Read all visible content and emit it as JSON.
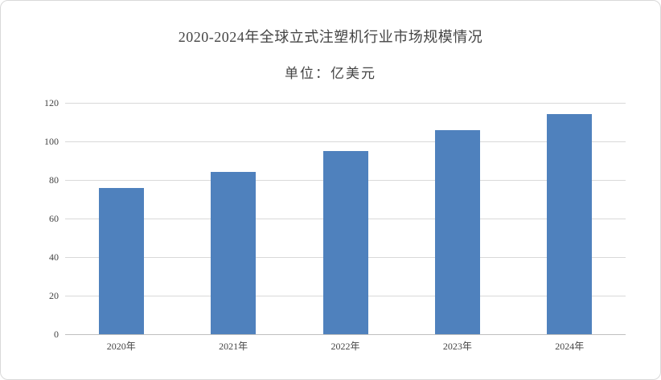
{
  "chart": {
    "title": "2020-2024年全球立式注塑机行业市场规模情况",
    "subtitle": "单位：亿美元"
  },
  "chart_data": {
    "type": "bar",
    "title": "2020-2024年全球立式注塑机行业市场规模情况",
    "subtitle": "单位：亿美元",
    "categories": [
      "2020年",
      "2021年",
      "2022年",
      "2023年",
      "2024年"
    ],
    "values": [
      76,
      84,
      95,
      106,
      114
    ],
    "xlabel": "",
    "ylabel": "",
    "ylim": [
      0,
      120
    ],
    "yticks": [
      0,
      20,
      40,
      60,
      80,
      100,
      120
    ],
    "grid": true,
    "legend": false,
    "colors": {
      "bar": "#4f81bd",
      "gridline": "#d9d9d9",
      "axis": "#bfbfbf",
      "text": "#444444"
    }
  }
}
